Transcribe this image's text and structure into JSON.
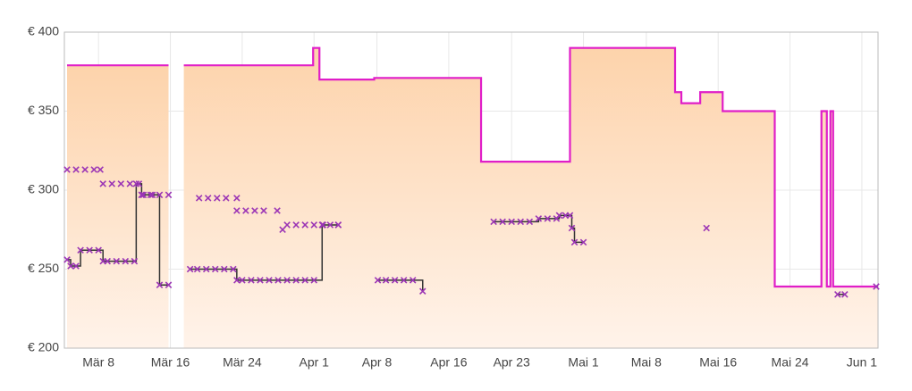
{
  "chart_data": {
    "type": "line",
    "xlim": [
      3.2,
      93.8
    ],
    "xticks": [
      {
        "value": 7,
        "label": "Mär 8"
      },
      {
        "value": 15,
        "label": "Mär 16"
      },
      {
        "value": 23,
        "label": "Mär 24"
      },
      {
        "value": 31,
        "label": "Apr 1"
      },
      {
        "value": 38,
        "label": "Apr 8"
      },
      {
        "value": 46,
        "label": "Apr 16"
      },
      {
        "value": 53,
        "label": "Apr 23"
      },
      {
        "value": 61,
        "label": "Mai 1"
      },
      {
        "value": 68,
        "label": "Mai 8"
      },
      {
        "value": 76,
        "label": "Mai 16"
      },
      {
        "value": 84,
        "label": "Mai 24"
      },
      {
        "value": 92,
        "label": "Jun 1"
      }
    ],
    "ylim": [
      200,
      400
    ],
    "yticks": [
      {
        "value": 200,
        "label": "€ 200"
      },
      {
        "value": 250,
        "label": "€ 250"
      },
      {
        "value": 300,
        "label": "€ 300"
      },
      {
        "value": 350,
        "label": "€ 350"
      },
      {
        "value": 400,
        "label": "€ 400"
      }
    ],
    "grid": true,
    "step": true,
    "series": [
      {
        "color": "#e01ec8",
        "fill": true,
        "fill_colors": [
          "#fdd3ab",
          "#fff3ea"
        ],
        "line": true,
        "x": [
          3.5,
          14.8,
          15.6,
          16.5,
          30.9,
          31.6,
          37.7,
          49.6,
          59.5,
          71.2,
          71.9,
          74,
          76.5,
          82.3,
          87.5,
          88.1,
          88.5,
          88.8,
          93.8
        ],
        "values": [
          379,
          379,
          null,
          379,
          390,
          370,
          371,
          318,
          390,
          362,
          355,
          362,
          350,
          239,
          350,
          239,
          350,
          239,
          239
        ]
      },
      {
        "color": "#333333",
        "marker_color": "#9b35b5",
        "line": true,
        "marker": "x",
        "x": [
          3.5,
          3.9,
          4.5,
          5.0,
          6,
          7,
          7.5,
          8,
          9,
          10,
          11,
          11.2,
          11.8,
          12,
          13,
          13.8,
          14.8,
          15.5,
          17.2,
          18,
          19,
          20,
          21,
          22,
          22.4,
          23,
          24,
          25,
          26,
          27,
          28,
          29,
          30,
          31,
          31.9,
          32.8,
          33.7,
          35,
          38.1,
          39,
          40,
          41,
          42,
          43.1,
          45,
          51,
          52,
          53,
          54,
          55,
          56,
          57,
          58,
          58.3,
          59,
          59.5,
          59.7,
          60,
          61,
          65,
          74.7,
          80,
          89.3,
          90.1,
          91,
          93.6
        ],
        "values": [
          256,
          252,
          252,
          262,
          262,
          262,
          255,
          255,
          255,
          255,
          255,
          304,
          297,
          297,
          297,
          240,
          240,
          null,
          250,
          250,
          250,
          250,
          250,
          250,
          243,
          243,
          243,
          243,
          243,
          243,
          243,
          243,
          243,
          243,
          278,
          278,
          278,
          null,
          243,
          243,
          243,
          243,
          243,
          236,
          null,
          280,
          280,
          280,
          280,
          280,
          282,
          282,
          282,
          284,
          284,
          284,
          276,
          267,
          267,
          null,
          276,
          null,
          234,
          234,
          null,
          239
        ]
      },
      {
        "marker_color": "#9b35b5",
        "line": false,
        "marker": "x",
        "x": [
          3.5,
          4.5,
          5.5,
          6.5,
          7.2,
          7.5,
          8.5,
          9.5,
          10.5,
          11.5,
          11.8,
          12.8,
          13.8,
          14.8,
          18.2,
          19.2,
          20.2,
          21.2,
          22.4,
          22.4,
          23.4,
          24.4,
          25.4,
          26.9,
          27.5,
          28,
          29,
          30,
          31,
          32,
          33.7
        ],
        "values": [
          313,
          313,
          313,
          313,
          313,
          304,
          304,
          304,
          304,
          304,
          297,
          297,
          297,
          297,
          295,
          295,
          295,
          295,
          295,
          287,
          287,
          287,
          287,
          287,
          275,
          278,
          278,
          278,
          278,
          278,
          278
        ]
      }
    ]
  }
}
